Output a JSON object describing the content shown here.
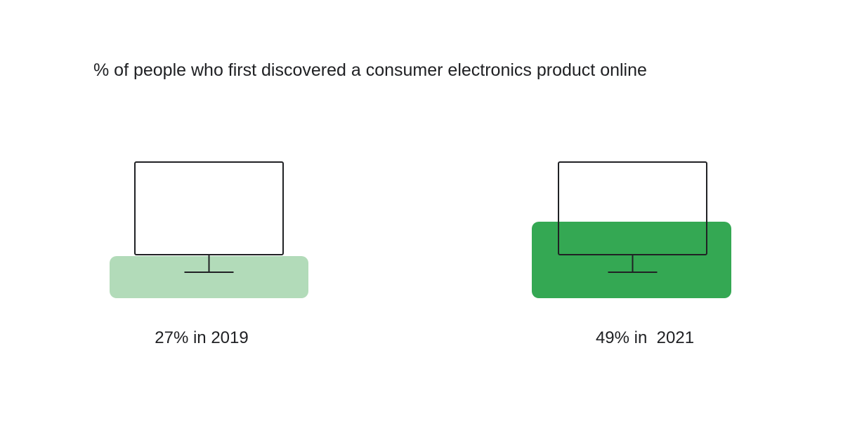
{
  "chart_data": {
    "type": "bar",
    "title": "% of people who first discovered a consumer electronics product online",
    "categories": [
      "2019",
      "2021"
    ],
    "values": [
      27,
      49
    ],
    "unit": "%",
    "ylim": [
      0,
      100
    ],
    "labels": [
      "27% in 2019",
      "49% in  2021"
    ],
    "colors": [
      "#b2dbb9",
      "#34a853"
    ],
    "icon": "monitor-icon",
    "grid": false,
    "legend": "none"
  }
}
